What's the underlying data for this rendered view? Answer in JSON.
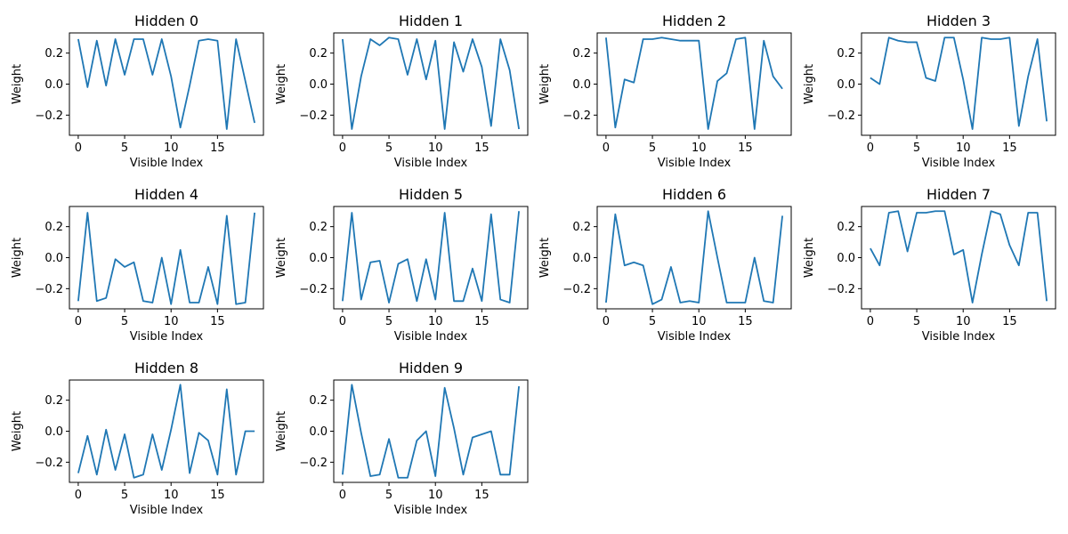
{
  "chart_data": [
    {
      "type": "line",
      "title": "Hidden 0",
      "xlabel": "Visible Index",
      "ylabel": "Weight",
      "x": [
        0,
        1,
        2,
        3,
        4,
        5,
        6,
        7,
        8,
        9,
        10,
        11,
        12,
        13,
        14,
        15,
        16,
        17,
        18,
        19
      ],
      "values": [
        0.29,
        -0.02,
        0.28,
        -0.01,
        0.29,
        0.06,
        0.29,
        0.29,
        0.06,
        0.29,
        0.05,
        -0.28,
        -0.01,
        0.28,
        0.29,
        0.28,
        -0.29,
        0.29,
        0.02,
        -0.25
      ],
      "xticks": [
        0,
        5,
        10,
        15
      ],
      "yticks": [
        -0.2,
        0.0,
        0.2
      ],
      "ylim": [
        -0.33,
        0.33
      ],
      "xlim": [
        -0.95,
        19.95
      ],
      "grid": false,
      "color": "#1f77b4"
    },
    {
      "type": "line",
      "title": "Hidden 1",
      "xlabel": "Visible Index",
      "ylabel": "Weight",
      "x": [
        0,
        1,
        2,
        3,
        4,
        5,
        6,
        7,
        8,
        9,
        10,
        11,
        12,
        13,
        14,
        15,
        16,
        17,
        18,
        19
      ],
      "values": [
        0.29,
        -0.29,
        0.05,
        0.29,
        0.25,
        0.3,
        0.29,
        0.06,
        0.29,
        0.03,
        0.28,
        -0.29,
        0.27,
        0.08,
        0.29,
        0.11,
        -0.27,
        0.29,
        0.09,
        -0.29
      ],
      "xticks": [
        0,
        5,
        10,
        15
      ],
      "yticks": [
        -0.2,
        0.0,
        0.2
      ],
      "ylim": [
        -0.33,
        0.33
      ],
      "xlim": [
        -0.95,
        19.95
      ],
      "grid": false,
      "color": "#1f77b4"
    },
    {
      "type": "line",
      "title": "Hidden 2",
      "xlabel": "Visible Index",
      "ylabel": "Weight",
      "x": [
        0,
        1,
        2,
        3,
        4,
        5,
        6,
        7,
        8,
        9,
        10,
        11,
        12,
        13,
        14,
        15,
        16,
        17,
        18,
        19
      ],
      "values": [
        0.3,
        -0.28,
        0.03,
        0.01,
        0.29,
        0.29,
        0.3,
        0.29,
        0.28,
        0.28,
        0.28,
        -0.29,
        0.02,
        0.07,
        0.29,
        0.3,
        -0.29,
        0.28,
        0.05,
        -0.03
      ],
      "xticks": [
        0,
        5,
        10,
        15
      ],
      "yticks": [
        -0.2,
        0.0,
        0.2
      ],
      "ylim": [
        -0.33,
        0.33
      ],
      "xlim": [
        -0.95,
        19.95
      ],
      "grid": false,
      "color": "#1f77b4"
    },
    {
      "type": "line",
      "title": "Hidden 3",
      "xlabel": "Visible Index",
      "ylabel": "Weight",
      "x": [
        0,
        1,
        2,
        3,
        4,
        5,
        6,
        7,
        8,
        9,
        10,
        11,
        12,
        13,
        14,
        15,
        16,
        17,
        18,
        19
      ],
      "values": [
        0.04,
        0.0,
        0.3,
        0.28,
        0.27,
        0.27,
        0.04,
        0.02,
        0.3,
        0.3,
        0.03,
        -0.29,
        0.3,
        0.29,
        0.29,
        0.3,
        -0.27,
        0.05,
        0.29,
        -0.24
      ],
      "xticks": [
        0,
        5,
        10,
        15
      ],
      "yticks": [
        -0.2,
        0.0,
        0.2
      ],
      "ylim": [
        -0.33,
        0.33
      ],
      "xlim": [
        -0.95,
        19.95
      ],
      "grid": false,
      "color": "#1f77b4"
    },
    {
      "type": "line",
      "title": "Hidden 4",
      "xlabel": "Visible Index",
      "ylabel": "Weight",
      "x": [
        0,
        1,
        2,
        3,
        4,
        5,
        6,
        7,
        8,
        9,
        10,
        11,
        12,
        13,
        14,
        15,
        16,
        17,
        18,
        19
      ],
      "values": [
        -0.28,
        0.29,
        -0.28,
        -0.26,
        -0.01,
        -0.06,
        -0.03,
        -0.28,
        -0.29,
        0.0,
        -0.3,
        0.05,
        -0.29,
        -0.29,
        -0.06,
        -0.3,
        0.27,
        -0.3,
        -0.29,
        0.29
      ],
      "xticks": [
        0,
        5,
        10,
        15
      ],
      "yticks": [
        -0.2,
        0.0,
        0.2
      ],
      "ylim": [
        -0.33,
        0.33
      ],
      "xlim": [
        -0.95,
        19.95
      ],
      "grid": false,
      "color": "#1f77b4"
    },
    {
      "type": "line",
      "title": "Hidden 5",
      "xlabel": "Visible Index",
      "ylabel": "Weight",
      "x": [
        0,
        1,
        2,
        3,
        4,
        5,
        6,
        7,
        8,
        9,
        10,
        11,
        12,
        13,
        14,
        15,
        16,
        17,
        18,
        19
      ],
      "values": [
        -0.28,
        0.29,
        -0.27,
        -0.03,
        -0.02,
        -0.29,
        -0.04,
        -0.01,
        -0.28,
        -0.01,
        -0.27,
        0.29,
        -0.28,
        -0.28,
        -0.07,
        -0.28,
        0.28,
        -0.27,
        -0.29,
        0.3
      ],
      "xticks": [
        0,
        5,
        10,
        15
      ],
      "yticks": [
        -0.2,
        0.0,
        0.2
      ],
      "ylim": [
        -0.33,
        0.33
      ],
      "xlim": [
        -0.95,
        19.95
      ],
      "grid": false,
      "color": "#1f77b4"
    },
    {
      "type": "line",
      "title": "Hidden 6",
      "xlabel": "Visible Index",
      "ylabel": "Weight",
      "x": [
        0,
        1,
        2,
        3,
        4,
        5,
        6,
        7,
        8,
        9,
        10,
        11,
        12,
        13,
        14,
        15,
        16,
        17,
        18,
        19
      ],
      "values": [
        -0.29,
        0.28,
        -0.05,
        -0.03,
        -0.05,
        -0.3,
        -0.27,
        -0.06,
        -0.29,
        -0.28,
        -0.29,
        0.3,
        0.0,
        -0.29,
        -0.29,
        -0.29,
        0.0,
        -0.28,
        -0.29,
        0.27
      ],
      "xticks": [
        0,
        5,
        10,
        15
      ],
      "yticks": [
        -0.2,
        0.0,
        0.2
      ],
      "ylim": [
        -0.33,
        0.33
      ],
      "xlim": [
        -0.95,
        19.95
      ],
      "grid": false,
      "color": "#1f77b4"
    },
    {
      "type": "line",
      "title": "Hidden 7",
      "xlabel": "Visible Index",
      "ylabel": "Weight",
      "x": [
        0,
        1,
        2,
        3,
        4,
        5,
        6,
        7,
        8,
        9,
        10,
        11,
        12,
        13,
        14,
        15,
        16,
        17,
        18,
        19
      ],
      "values": [
        0.06,
        -0.05,
        0.29,
        0.3,
        0.04,
        0.29,
        0.29,
        0.3,
        0.3,
        0.02,
        0.05,
        -0.29,
        0.02,
        0.3,
        0.28,
        0.08,
        -0.05,
        0.29,
        0.29,
        -0.28
      ],
      "xticks": [
        0,
        5,
        10,
        15
      ],
      "yticks": [
        -0.2,
        0.0,
        0.2
      ],
      "ylim": [
        -0.33,
        0.33
      ],
      "xlim": [
        -0.95,
        19.95
      ],
      "grid": false,
      "color": "#1f77b4"
    },
    {
      "type": "line",
      "title": "Hidden 8",
      "xlabel": "Visible Index",
      "ylabel": "Weight",
      "x": [
        0,
        1,
        2,
        3,
        4,
        5,
        6,
        7,
        8,
        9,
        10,
        11,
        12,
        13,
        14,
        15,
        16,
        17,
        18,
        19
      ],
      "values": [
        -0.27,
        -0.03,
        -0.28,
        0.01,
        -0.25,
        -0.02,
        -0.3,
        -0.28,
        -0.02,
        -0.25,
        0.01,
        0.3,
        -0.27,
        -0.01,
        -0.06,
        -0.28,
        0.27,
        -0.28,
        0.0,
        0.0
      ],
      "xticks": [
        0,
        5,
        10,
        15
      ],
      "yticks": [
        -0.2,
        0.0,
        0.2
      ],
      "ylim": [
        -0.33,
        0.33
      ],
      "xlim": [
        -0.95,
        19.95
      ],
      "grid": false,
      "color": "#1f77b4"
    },
    {
      "type": "line",
      "title": "Hidden 9",
      "xlabel": "Visible Index",
      "ylabel": "Weight",
      "x": [
        0,
        1,
        2,
        3,
        4,
        5,
        6,
        7,
        8,
        9,
        10,
        11,
        12,
        13,
        14,
        15,
        16,
        17,
        18,
        19
      ],
      "values": [
        -0.28,
        0.3,
        -0.01,
        -0.29,
        -0.28,
        -0.05,
        -0.3,
        -0.3,
        -0.06,
        0.0,
        -0.29,
        0.28,
        0.02,
        -0.28,
        -0.04,
        -0.02,
        0.0,
        -0.28,
        -0.28,
        0.29
      ],
      "xticks": [
        0,
        5,
        10,
        15
      ],
      "yticks": [
        -0.2,
        0.0,
        0.2
      ],
      "ylim": [
        -0.33,
        0.33
      ],
      "xlim": [
        -0.95,
        19.95
      ],
      "grid": false,
      "color": "#1f77b4"
    }
  ]
}
